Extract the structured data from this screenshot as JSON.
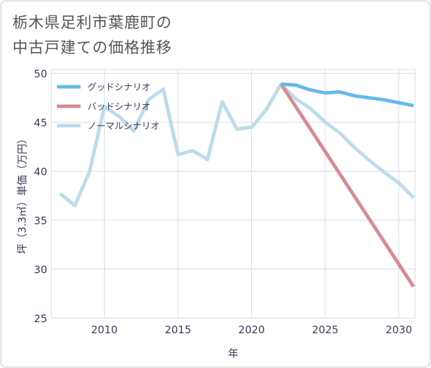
{
  "title_lines": [
    "栃木県足利市葉鹿町の",
    "中古戸建ての価格推移"
  ],
  "chart_data": {
    "type": "line",
    "title": "栃木県足利市葉鹿町の中古戸建ての価格推移",
    "xlabel": "年",
    "ylabel": "坪（3.3㎡）単価（万円）",
    "xlim": [
      2006.4,
      2031.1
    ],
    "ylim": [
      25,
      50.4
    ],
    "xticks": [
      2010,
      2015,
      2020,
      2025,
      2030
    ],
    "yticks": [
      25,
      30,
      35,
      40,
      45,
      50
    ],
    "legend_position": "top-left",
    "series": [
      {
        "name": "グッドシナリオ",
        "color": "#66b8ee",
        "x": [
          2022,
          2023,
          2024,
          2025,
          2026,
          2027,
          2028,
          2029,
          2030,
          2031
        ],
        "y": [
          48.9,
          48.8,
          48.3,
          48.0,
          48.1,
          47.7,
          47.5,
          47.3,
          47.0,
          46.7
        ]
      },
      {
        "name": "バッドシナリオ",
        "color": "#d98a93",
        "x": [
          2022,
          2023,
          2024,
          2025,
          2026,
          2027,
          2028,
          2029,
          2030,
          2031
        ],
        "y": [
          48.9,
          46.6,
          44.3,
          42.0,
          39.7,
          37.4,
          35.1,
          32.8,
          30.5,
          28.2
        ]
      },
      {
        "name": "ノーマルシナリオ",
        "color": "#bcdcea",
        "x": [
          2007,
          2008,
          2009,
          2010,
          2011,
          2012,
          2013,
          2014,
          2015,
          2016,
          2017,
          2018,
          2019,
          2020,
          2021,
          2022,
          2023,
          2024,
          2025,
          2026,
          2027,
          2028,
          2029,
          2030,
          2031
        ],
        "y": [
          37.7,
          36.5,
          40.0,
          46.6,
          45.6,
          44.1,
          47.3,
          48.4,
          41.7,
          42.1,
          41.2,
          47.1,
          44.3,
          44.5,
          46.3,
          48.9,
          47.4,
          46.4,
          45.0,
          43.9,
          42.4,
          41.1,
          39.9,
          38.8,
          37.3
        ]
      }
    ]
  }
}
